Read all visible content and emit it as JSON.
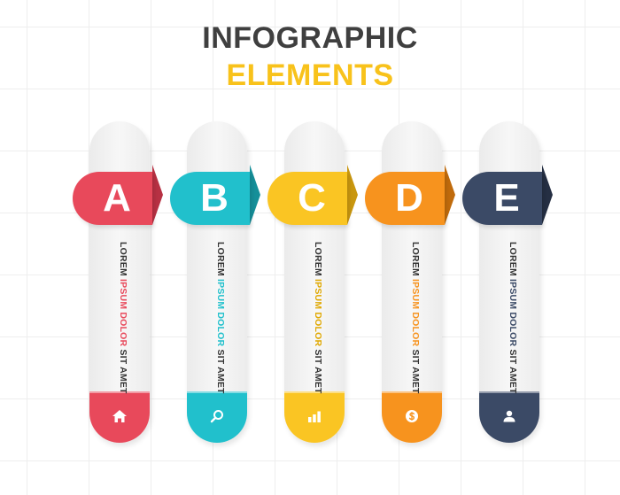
{
  "title": {
    "line1": "INFOGRAPHIC",
    "line2": "ELEMENTS"
  },
  "colors": {
    "title_dark": "#3f3f3f",
    "title_accent": "#f8c21b"
  },
  "cards": [
    {
      "letter": "A",
      "color": "#e8495b",
      "fold_color": "#b73143",
      "text_start": "LOREM ",
      "text_highlight": "IPSUM DOLOR",
      "text_end": " SIT AMET",
      "icon": "home-icon"
    },
    {
      "letter": "B",
      "color": "#21c0cc",
      "fold_color": "#158f99",
      "text_start": "LOREM ",
      "text_highlight": "IPSUM DOLOR",
      "text_end": " SIT AMET",
      "icon": "search-icon"
    },
    {
      "letter": "C",
      "color": "#fac523",
      "fold_color": "#c9970f",
      "text_start": "LOREM ",
      "text_highlight": "IPSUM DOLOR",
      "text_end": " SIT AMET",
      "icon": "bar-chart-icon"
    },
    {
      "letter": "D",
      "color": "#f7931e",
      "fold_color": "#c06b0c",
      "text_start": "LOREM ",
      "text_highlight": "IPSUM DOLOR",
      "text_end": " SIT AMET",
      "icon": "dollar-coin-icon"
    },
    {
      "letter": "E",
      "color": "#3b4a66",
      "fold_color": "#252f43",
      "text_start": "LOREM ",
      "text_highlight": "IPSUM DOLOR",
      "text_end": " SIT AMET",
      "icon": "user-icon"
    }
  ]
}
